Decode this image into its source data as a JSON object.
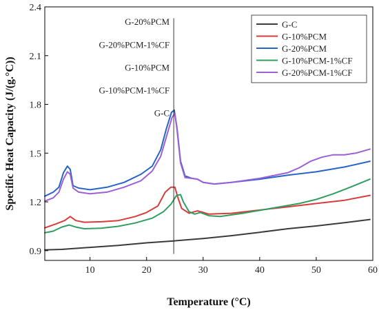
{
  "chart_data": {
    "type": "line",
    "title": "",
    "xlabel": "Temperature (°C)",
    "ylabel": "Specific Heat Capacity (J/(g.°C))",
    "xlim": [
      2,
      60
    ],
    "ylim": [
      0.84,
      2.4
    ],
    "xticks": [
      10,
      20,
      30,
      40,
      50,
      60
    ],
    "yticks": [
      0.9,
      1.2,
      1.5,
      1.8,
      2.1,
      2.4
    ],
    "ytick_labels": [
      "0.9",
      "1.2",
      "1.5",
      "1.8",
      "2.1",
      "2.4"
    ],
    "legend_position": "top-right",
    "annotation_line_x": 24.8,
    "annotations": [
      {
        "text": "G-20%PCM",
        "y": 2.31
      },
      {
        "text": "G-20%PCM-1%CF",
        "y": 2.17
      },
      {
        "text": "G-10%PCM",
        "y": 2.03
      },
      {
        "text": "G-10%PCM-1%CF",
        "y": 1.89
      },
      {
        "text": "G-C",
        "y": 1.75
      }
    ],
    "series": [
      {
        "name": "G-C",
        "color": "#3a3a3a",
        "points": [
          [
            2,
            0.905
          ],
          [
            5,
            0.908
          ],
          [
            10,
            0.92
          ],
          [
            15,
            0.932
          ],
          [
            20,
            0.948
          ],
          [
            24.8,
            0.96
          ],
          [
            30,
            0.975
          ],
          [
            35,
            0.992
          ],
          [
            40,
            1.013
          ],
          [
            45,
            1.035
          ],
          [
            50,
            1.052
          ],
          [
            55,
            1.072
          ],
          [
            59.5,
            1.092
          ]
        ]
      },
      {
        "name": "G-10%PCM",
        "color": "#d93a3a",
        "points": [
          [
            2,
            1.04
          ],
          [
            4,
            1.065
          ],
          [
            5.5,
            1.085
          ],
          [
            6.5,
            1.11
          ],
          [
            7.5,
            1.085
          ],
          [
            9,
            1.075
          ],
          [
            12,
            1.078
          ],
          [
            15,
            1.085
          ],
          [
            18,
            1.11
          ],
          [
            20,
            1.135
          ],
          [
            22,
            1.175
          ],
          [
            23.3,
            1.26
          ],
          [
            24.3,
            1.29
          ],
          [
            25,
            1.29
          ],
          [
            25.5,
            1.23
          ],
          [
            26.2,
            1.16
          ],
          [
            27.5,
            1.13
          ],
          [
            29,
            1.145
          ],
          [
            30,
            1.135
          ],
          [
            31,
            1.125
          ],
          [
            35,
            1.13
          ],
          [
            40,
            1.15
          ],
          [
            45,
            1.17
          ],
          [
            50,
            1.19
          ],
          [
            55,
            1.21
          ],
          [
            59.5,
            1.24
          ]
        ]
      },
      {
        "name": "G-20%PCM",
        "color": "#2563c9",
        "points": [
          [
            2,
            1.235
          ],
          [
            3.5,
            1.26
          ],
          [
            4.5,
            1.29
          ],
          [
            5.3,
            1.38
          ],
          [
            6,
            1.42
          ],
          [
            6.5,
            1.4
          ],
          [
            7,
            1.3
          ],
          [
            8,
            1.285
          ],
          [
            10,
            1.275
          ],
          [
            13,
            1.29
          ],
          [
            16,
            1.32
          ],
          [
            19,
            1.37
          ],
          [
            21,
            1.42
          ],
          [
            22.5,
            1.52
          ],
          [
            23.5,
            1.65
          ],
          [
            24.4,
            1.75
          ],
          [
            24.9,
            1.765
          ],
          [
            25.4,
            1.65
          ],
          [
            26,
            1.45
          ],
          [
            26.8,
            1.36
          ],
          [
            28,
            1.345
          ],
          [
            29,
            1.34
          ],
          [
            30,
            1.32
          ],
          [
            32,
            1.31
          ],
          [
            35,
            1.32
          ],
          [
            40,
            1.34
          ],
          [
            45,
            1.365
          ],
          [
            50,
            1.385
          ],
          [
            55,
            1.415
          ],
          [
            59.5,
            1.45
          ]
        ]
      },
      {
        "name": "G-10%PCM-1%CF",
        "color": "#2f9e5e",
        "points": [
          [
            2,
            1.01
          ],
          [
            3.5,
            1.02
          ],
          [
            5,
            1.045
          ],
          [
            6.3,
            1.058
          ],
          [
            7.5,
            1.045
          ],
          [
            9,
            1.035
          ],
          [
            12,
            1.038
          ],
          [
            15,
            1.05
          ],
          [
            18,
            1.07
          ],
          [
            21,
            1.1
          ],
          [
            23,
            1.14
          ],
          [
            24.3,
            1.185
          ],
          [
            25.3,
            1.24
          ],
          [
            26,
            1.245
          ],
          [
            26.5,
            1.2
          ],
          [
            27.5,
            1.14
          ],
          [
            28.5,
            1.125
          ],
          [
            29.5,
            1.135
          ],
          [
            31,
            1.115
          ],
          [
            33,
            1.11
          ],
          [
            37,
            1.13
          ],
          [
            42,
            1.16
          ],
          [
            47,
            1.19
          ],
          [
            50,
            1.215
          ],
          [
            53,
            1.25
          ],
          [
            56,
            1.29
          ],
          [
            59.5,
            1.34
          ]
        ]
      },
      {
        "name": "G-20%PCM-1%CF",
        "color": "#9b5fd6",
        "points": [
          [
            2,
            1.205
          ],
          [
            3.5,
            1.225
          ],
          [
            4.5,
            1.26
          ],
          [
            5.3,
            1.34
          ],
          [
            6,
            1.385
          ],
          [
            6.5,
            1.37
          ],
          [
            7,
            1.285
          ],
          [
            8,
            1.26
          ],
          [
            10,
            1.25
          ],
          [
            13,
            1.26
          ],
          [
            16,
            1.29
          ],
          [
            19,
            1.33
          ],
          [
            21,
            1.39
          ],
          [
            22.5,
            1.48
          ],
          [
            23.5,
            1.6
          ],
          [
            24.5,
            1.72
          ],
          [
            25,
            1.745
          ],
          [
            25.4,
            1.64
          ],
          [
            26,
            1.44
          ],
          [
            26.8,
            1.35
          ],
          [
            28,
            1.345
          ],
          [
            29,
            1.34
          ],
          [
            30,
            1.32
          ],
          [
            32,
            1.31
          ],
          [
            35,
            1.32
          ],
          [
            40,
            1.345
          ],
          [
            45,
            1.38
          ],
          [
            47,
            1.41
          ],
          [
            49,
            1.45
          ],
          [
            51,
            1.475
          ],
          [
            53,
            1.49
          ],
          [
            55,
            1.49
          ],
          [
            57,
            1.5
          ],
          [
            59.5,
            1.525
          ]
        ]
      }
    ]
  }
}
